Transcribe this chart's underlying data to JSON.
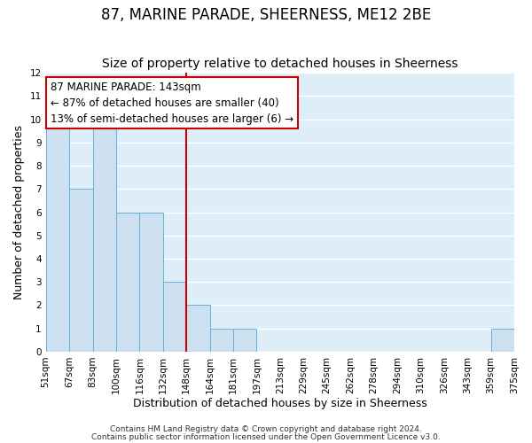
{
  "title": "87, MARINE PARADE, SHEERNESS, ME12 2BE",
  "subtitle": "Size of property relative to detached houses in Sheerness",
  "xlabel": "Distribution of detached houses by size in Sheerness",
  "ylabel": "Number of detached properties",
  "bin_labels": [
    "51sqm",
    "67sqm",
    "83sqm",
    "100sqm",
    "116sqm",
    "132sqm",
    "148sqm",
    "164sqm",
    "181sqm",
    "197sqm",
    "213sqm",
    "229sqm",
    "245sqm",
    "262sqm",
    "278sqm",
    "294sqm",
    "310sqm",
    "326sqm",
    "343sqm",
    "359sqm",
    "375sqm"
  ],
  "bar_heights": [
    10,
    7,
    10,
    6,
    6,
    3,
    2,
    1,
    1,
    0,
    0,
    0,
    0,
    0,
    0,
    0,
    0,
    0,
    0,
    1,
    0
  ],
  "bar_color": "#cce0f0",
  "bar_edge_color": "#6aaed6",
  "vline_x_index": 6,
  "vline_color": "#cc0000",
  "annotation_text": "87 MARINE PARADE: 143sqm\n← 87% of detached houses are smaller (40)\n13% of semi-detached houses are larger (6) →",
  "annotation_box_color": "#ffffff",
  "annotation_box_edge_color": "#cc0000",
  "ylim": [
    0,
    12
  ],
  "yticks": [
    0,
    1,
    2,
    3,
    4,
    5,
    6,
    7,
    8,
    9,
    10,
    11,
    12
  ],
  "footnote1": "Contains HM Land Registry data © Crown copyright and database right 2024.",
  "footnote2": "Contains public sector information licensed under the Open Government Licence v3.0.",
  "background_color": "#ddeef8",
  "grid_color": "#ffffff",
  "title_fontsize": 12,
  "subtitle_fontsize": 10,
  "axis_label_fontsize": 9,
  "tick_fontsize": 7.5,
  "annotation_fontsize": 8.5,
  "footnote_fontsize": 6.5
}
